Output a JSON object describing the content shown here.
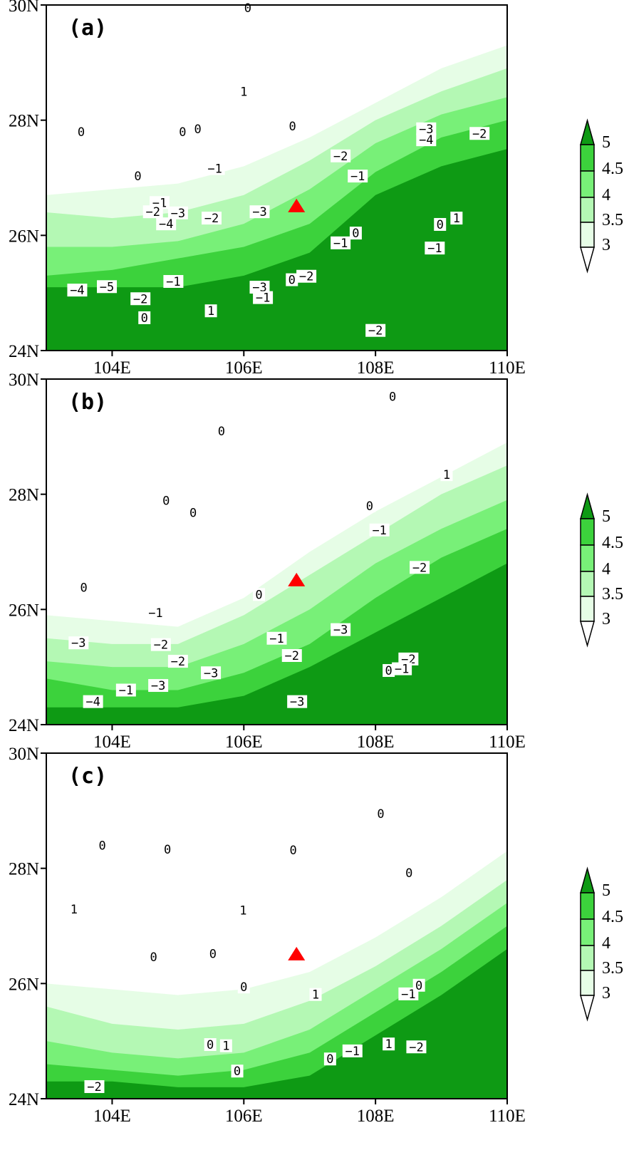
{
  "colors": {
    "levels_fill": [
      "#e6fde6",
      "#b4f8b4",
      "#78f078",
      "#3cd23c",
      "#0e9a14"
    ],
    "marker": "#ff0000",
    "contour": "#000000"
  },
  "colorbar": {
    "labels": [
      "5",
      "4.5",
      "4",
      "3.5",
      "3"
    ]
  },
  "axes": {
    "lon_range": [
      103,
      110
    ],
    "lat_range": [
      24,
      30
    ],
    "lon_ticks": [
      "104E",
      "106E",
      "108E",
      "110E"
    ],
    "lat_ticks": [
      "24N",
      "26N",
      "28N",
      "30N"
    ]
  },
  "marker": {
    "type": "triangle",
    "lon": 106.8,
    "lat": 26.5
  },
  "panels": [
    {
      "label": "(a)",
      "shading_levels": [
        3,
        3.5,
        4,
        4.5,
        5
      ],
      "shading_boundaries_lat_at_lon_103_to_110": [
        [
          26.7,
          26.8,
          26.9,
          27.2,
          27.7,
          28.3,
          28.9,
          29.3
        ],
        [
          26.4,
          26.3,
          26.4,
          26.7,
          27.3,
          28.0,
          28.5,
          28.9
        ],
        [
          25.8,
          25.8,
          25.9,
          26.2,
          26.8,
          27.6,
          28.1,
          28.4
        ],
        [
          25.3,
          25.4,
          25.6,
          25.8,
          26.2,
          27.1,
          27.7,
          28.0
        ],
        [
          25.1,
          25.1,
          25.1,
          25.3,
          25.7,
          26.7,
          27.2,
          27.5
        ]
      ],
      "contour_labels": [
        {
          "t": "0",
          "lon": 106.06,
          "lat": 29.95
        },
        {
          "t": "1",
          "lon": 106.0,
          "lat": 28.5
        },
        {
          "t": "0",
          "lon": 106.74,
          "lat": 27.9
        },
        {
          "t": "0",
          "lon": 105.3,
          "lat": 27.85
        },
        {
          "t": "0",
          "lon": 105.07,
          "lat": 27.8
        },
        {
          "t": "0",
          "lon": 103.53,
          "lat": 27.8
        },
        {
          "t": "0",
          "lon": 104.39,
          "lat": 27.03
        },
        {
          "t": "−1",
          "lon": 105.56,
          "lat": 27.16
        },
        {
          "t": "−2",
          "lon": 107.47,
          "lat": 27.38
        },
        {
          "t": "−1",
          "lon": 107.73,
          "lat": 27.03
        },
        {
          "t": "−3",
          "lon": 108.77,
          "lat": 27.85
        },
        {
          "t": "−4",
          "lon": 108.77,
          "lat": 27.66
        },
        {
          "t": "−2",
          "lon": 109.58,
          "lat": 27.77
        },
        {
          "t": "−1",
          "lon": 104.72,
          "lat": 26.57
        },
        {
          "t": "−2",
          "lon": 104.62,
          "lat": 26.41
        },
        {
          "t": "−3",
          "lon": 105.0,
          "lat": 26.39
        },
        {
          "t": "−4",
          "lon": 104.82,
          "lat": 26.2
        },
        {
          "t": "−2",
          "lon": 105.51,
          "lat": 26.3
        },
        {
          "t": "−3",
          "lon": 106.24,
          "lat": 26.41
        },
        {
          "t": "−1",
          "lon": 107.47,
          "lat": 25.87
        },
        {
          "t": "0",
          "lon": 107.7,
          "lat": 26.04
        },
        {
          "t": "0",
          "lon": 108.98,
          "lat": 26.19
        },
        {
          "t": "1",
          "lon": 109.23,
          "lat": 26.3
        },
        {
          "t": "−1",
          "lon": 108.9,
          "lat": 25.78
        },
        {
          "t": "−4",
          "lon": 103.47,
          "lat": 25.05
        },
        {
          "t": "−5",
          "lon": 103.92,
          "lat": 25.11
        },
        {
          "t": "−2",
          "lon": 104.43,
          "lat": 24.9
        },
        {
          "t": "0",
          "lon": 104.49,
          "lat": 24.57
        },
        {
          "t": "−1",
          "lon": 104.93,
          "lat": 25.2
        },
        {
          "t": "1",
          "lon": 105.5,
          "lat": 24.69
        },
        {
          "t": "−3",
          "lon": 106.24,
          "lat": 25.1
        },
        {
          "t": "−1",
          "lon": 106.29,
          "lat": 24.92
        },
        {
          "t": "0",
          "lon": 106.73,
          "lat": 25.23
        },
        {
          "t": "−2",
          "lon": 106.95,
          "lat": 25.29
        },
        {
          "t": "−2",
          "lon": 108.0,
          "lat": 24.35
        }
      ]
    },
    {
      "label": "(b)",
      "shading_levels": [
        3,
        3.5,
        4,
        4.5,
        5
      ],
      "shading_boundaries_lat_at_lon_103_to_110": [
        [
          25.9,
          25.8,
          25.7,
          26.2,
          27.0,
          27.7,
          28.3,
          28.9
        ],
        [
          25.5,
          25.4,
          25.4,
          25.9,
          26.6,
          27.3,
          28.0,
          28.5
        ],
        [
          25.1,
          25.0,
          25.0,
          25.4,
          26.0,
          26.8,
          27.4,
          27.9
        ],
        [
          24.8,
          24.6,
          24.6,
          24.9,
          25.4,
          26.2,
          26.9,
          27.4
        ],
        [
          24.3,
          24.3,
          24.3,
          24.5,
          25.0,
          25.6,
          26.2,
          26.8
        ]
      ],
      "contour_labels": [
        {
          "t": "0",
          "lon": 108.26,
          "lat": 29.7
        },
        {
          "t": "0",
          "lon": 105.66,
          "lat": 29.1
        },
        {
          "t": "1",
          "lon": 109.08,
          "lat": 28.34
        },
        {
          "t": "0",
          "lon": 104.82,
          "lat": 27.89
        },
        {
          "t": "0",
          "lon": 105.23,
          "lat": 27.68
        },
        {
          "t": "0",
          "lon": 107.91,
          "lat": 27.8
        },
        {
          "t": "−1",
          "lon": 108.06,
          "lat": 27.38
        },
        {
          "t": "−2",
          "lon": 108.67,
          "lat": 26.73
        },
        {
          "t": "0",
          "lon": 103.57,
          "lat": 26.38
        },
        {
          "t": "0",
          "lon": 106.23,
          "lat": 26.26
        },
        {
          "t": "−1",
          "lon": 104.66,
          "lat": 25.94
        },
        {
          "t": "−3",
          "lon": 103.49,
          "lat": 25.42
        },
        {
          "t": "−2",
          "lon": 104.74,
          "lat": 25.39
        },
        {
          "t": "−1",
          "lon": 106.5,
          "lat": 25.5
        },
        {
          "t": "−3",
          "lon": 107.47,
          "lat": 25.65
        },
        {
          "t": "−2",
          "lon": 106.73,
          "lat": 25.2
        },
        {
          "t": "−2",
          "lon": 105.0,
          "lat": 25.1
        },
        {
          "t": "−3",
          "lon": 105.5,
          "lat": 24.9
        },
        {
          "t": "−2",
          "lon": 108.5,
          "lat": 25.14
        },
        {
          "t": "0",
          "lon": 108.2,
          "lat": 24.94
        },
        {
          "t": "−1",
          "lon": 108.4,
          "lat": 24.97
        },
        {
          "t": "−3",
          "lon": 104.7,
          "lat": 24.68
        },
        {
          "t": "−1",
          "lon": 104.21,
          "lat": 24.6
        },
        {
          "t": "−4",
          "lon": 103.71,
          "lat": 24.4
        },
        {
          "t": "−3",
          "lon": 106.81,
          "lat": 24.4
        }
      ]
    },
    {
      "label": "(c)",
      "shading_levels": [
        3,
        3.5,
        4,
        4.5,
        5
      ],
      "shading_boundaries_lat_at_lon_103_to_110": [
        [
          26.0,
          25.9,
          25.8,
          25.9,
          26.2,
          26.8,
          27.5,
          28.3
        ],
        [
          25.6,
          25.3,
          25.2,
          25.3,
          25.7,
          26.3,
          27.0,
          27.8
        ],
        [
          25.0,
          24.8,
          24.7,
          24.8,
          25.2,
          25.9,
          26.6,
          27.4
        ],
        [
          24.6,
          24.5,
          24.4,
          24.5,
          24.8,
          25.5,
          26.2,
          27.0
        ],
        [
          24.3,
          24.3,
          24.2,
          24.2,
          24.4,
          25.1,
          25.8,
          26.6
        ]
      ],
      "contour_labels": [
        {
          "t": "0",
          "lon": 108.08,
          "lat": 28.95
        },
        {
          "t": "0",
          "lon": 103.85,
          "lat": 28.4
        },
        {
          "t": "0",
          "lon": 104.84,
          "lat": 28.33
        },
        {
          "t": "0",
          "lon": 106.75,
          "lat": 28.32
        },
        {
          "t": "0",
          "lon": 108.51,
          "lat": 27.92
        },
        {
          "t": "1",
          "lon": 103.42,
          "lat": 27.29
        },
        {
          "t": "1",
          "lon": 105.99,
          "lat": 27.27
        },
        {
          "t": "0",
          "lon": 104.63,
          "lat": 26.46
        },
        {
          "t": "0",
          "lon": 105.53,
          "lat": 26.52
        },
        {
          "t": "0",
          "lon": 106.0,
          "lat": 25.94
        },
        {
          "t": "1",
          "lon": 107.09,
          "lat": 25.81
        },
        {
          "t": "−1",
          "lon": 108.5,
          "lat": 25.82
        },
        {
          "t": "0",
          "lon": 108.66,
          "lat": 25.97
        },
        {
          "t": "0",
          "lon": 105.49,
          "lat": 24.94
        },
        {
          "t": "1",
          "lon": 105.73,
          "lat": 24.92
        },
        {
          "t": "0",
          "lon": 105.9,
          "lat": 24.48
        },
        {
          "t": "−1",
          "lon": 107.65,
          "lat": 24.83
        },
        {
          "t": "0",
          "lon": 107.31,
          "lat": 24.69
        },
        {
          "t": "1",
          "lon": 108.2,
          "lat": 24.95
        },
        {
          "t": "−2",
          "lon": 108.62,
          "lat": 24.9
        },
        {
          "t": "−2",
          "lon": 103.73,
          "lat": 24.21
        }
      ]
    }
  ]
}
